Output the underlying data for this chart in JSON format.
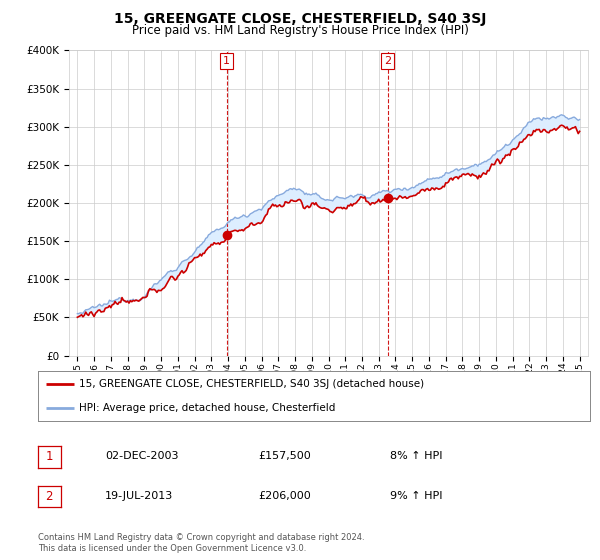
{
  "title": "15, GREENGATE CLOSE, CHESTERFIELD, S40 3SJ",
  "subtitle": "Price paid vs. HM Land Registry's House Price Index (HPI)",
  "legend_line1": "15, GREENGATE CLOSE, CHESTERFIELD, S40 3SJ (detached house)",
  "legend_line2": "HPI: Average price, detached house, Chesterfield",
  "transaction1_date": "02-DEC-2003",
  "transaction1_price": "£157,500",
  "transaction1_hpi": "8% ↑ HPI",
  "transaction2_date": "19-JUL-2013",
  "transaction2_price": "£206,000",
  "transaction2_hpi": "9% ↑ HPI",
  "footnote": "Contains HM Land Registry data © Crown copyright and database right 2024.\nThis data is licensed under the Open Government Licence v3.0.",
  "price_line_color": "#cc0000",
  "hpi_line_color": "#88aadd",
  "hpi_fill_color": "#ddeeff",
  "vline_color": "#cc0000",
  "marker_color": "#cc0000",
  "ylim": [
    0,
    400000
  ],
  "yticks": [
    0,
    50000,
    100000,
    150000,
    200000,
    250000,
    300000,
    350000,
    400000
  ],
  "background_color": "#ffffff",
  "grid_color": "#cccccc",
  "transaction1_year": 2003.92,
  "transaction2_year": 2013.54,
  "transaction1_price_val": 157500,
  "transaction2_price_val": 206000
}
